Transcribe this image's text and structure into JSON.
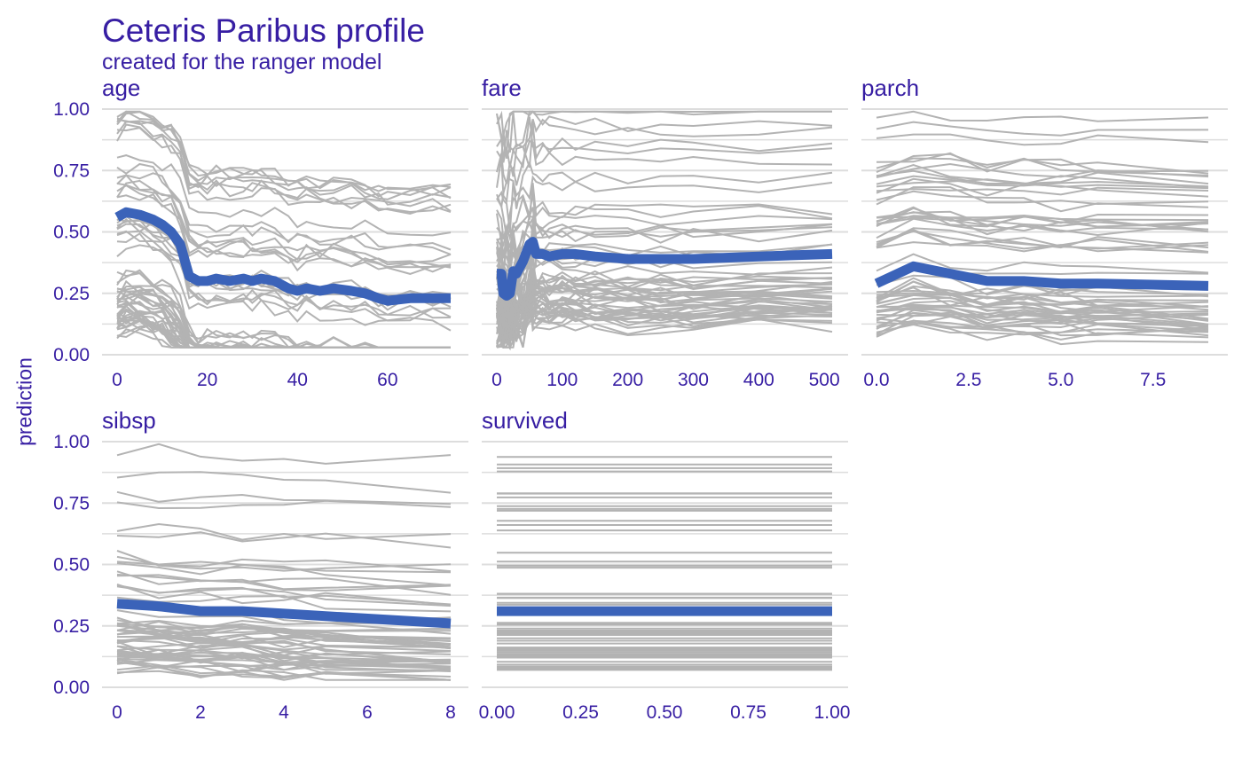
{
  "title": "Ceteris Paribus profile",
  "subtitle": "created for the ranger model",
  "ylabel": "prediction",
  "colors": {
    "text": "#371ea3",
    "grid": "#dddddd",
    "profiles": "#b3b3b3",
    "highlight": "#3b63b9"
  },
  "chart_data": [
    {
      "type": "line",
      "title": "age",
      "ylabel": "prediction",
      "ylim": [
        0,
        1
      ],
      "xlim": [
        0,
        74
      ],
      "xticks": [
        0,
        20,
        40,
        60
      ],
      "xtick_labels": [
        "0",
        "20",
        "40",
        "60"
      ],
      "yticks": [
        0,
        0.25,
        0.5,
        0.75,
        1
      ],
      "ytick_labels": [
        "0.00",
        "0.25",
        "0.50",
        "0.75",
        "1.00"
      ],
      "grid": true,
      "highlight_series": {
        "x": [
          0,
          2,
          5,
          8,
          10,
          12,
          14,
          16,
          18,
          20,
          22,
          25,
          28,
          30,
          32,
          35,
          38,
          40,
          42,
          45,
          48,
          52,
          55,
          58,
          60,
          65,
          70,
          74
        ],
        "y": [
          0.56,
          0.58,
          0.57,
          0.55,
          0.53,
          0.5,
          0.45,
          0.32,
          0.3,
          0.3,
          0.31,
          0.3,
          0.31,
          0.3,
          0.31,
          0.3,
          0.27,
          0.26,
          0.27,
          0.26,
          0.27,
          0.26,
          0.25,
          0.23,
          0.22,
          0.23,
          0.23,
          0.23
        ]
      },
      "profile_count": 60
    },
    {
      "type": "line",
      "title": "fare",
      "ylim": [
        0,
        1
      ],
      "xlim": [
        0,
        512
      ],
      "xticks": [
        0,
        100,
        200,
        300,
        400,
        500
      ],
      "xtick_labels": [
        "0",
        "100",
        "200",
        "300",
        "400",
        "500"
      ],
      "yticks": [
        0,
        0.25,
        0.5,
        0.75,
        1
      ],
      "grid": true,
      "highlight_series": {
        "x": [
          0,
          7,
          10,
          15,
          20,
          25,
          30,
          40,
          50,
          55,
          60,
          70,
          80,
          100,
          120,
          150,
          200,
          250,
          300,
          400,
          512
        ],
        "y": [
          0.33,
          0.33,
          0.25,
          0.24,
          0.25,
          0.34,
          0.33,
          0.38,
          0.45,
          0.46,
          0.41,
          0.41,
          0.4,
          0.41,
          0.41,
          0.4,
          0.39,
          0.39,
          0.39,
          0.4,
          0.41
        ]
      },
      "profile_count": 60
    },
    {
      "type": "line",
      "title": "parch",
      "ylim": [
        0,
        1
      ],
      "xlim": [
        0,
        9
      ],
      "xticks": [
        0,
        2.5,
        5,
        7.5
      ],
      "xtick_labels": [
        "0.0",
        "2.5",
        "5.0",
        "7.5"
      ],
      "yticks": [
        0,
        0.25,
        0.5,
        0.75,
        1
      ],
      "grid": true,
      "highlight_series": {
        "x": [
          0,
          1,
          2,
          3,
          4,
          5,
          6,
          9
        ],
        "y": [
          0.29,
          0.36,
          0.33,
          0.3,
          0.3,
          0.29,
          0.29,
          0.28
        ]
      },
      "profile_count": 60
    },
    {
      "type": "line",
      "title": "sibsp",
      "ylim": [
        0,
        1
      ],
      "xlim": [
        0,
        8
      ],
      "xticks": [
        0,
        2,
        4,
        6,
        8
      ],
      "xtick_labels": [
        "0",
        "2",
        "4",
        "6",
        "8"
      ],
      "yticks": [
        0,
        0.25,
        0.5,
        0.75,
        1
      ],
      "ytick_labels": [
        "0.00",
        "0.25",
        "0.50",
        "0.75",
        "1.00"
      ],
      "grid": true,
      "highlight_series": {
        "x": [
          0,
          1,
          2,
          3,
          4,
          5,
          8
        ],
        "y": [
          0.34,
          0.33,
          0.31,
          0.31,
          0.3,
          0.29,
          0.26
        ]
      },
      "profile_count": 60
    },
    {
      "type": "line",
      "title": "survived",
      "ylim": [
        0,
        1
      ],
      "xlim": [
        0,
        1
      ],
      "xticks": [
        0,
        0.25,
        0.5,
        0.75,
        1
      ],
      "xtick_labels": [
        "0.00",
        "0.25",
        "0.50",
        "0.75",
        "1.00"
      ],
      "yticks": [
        0,
        0.25,
        0.5,
        0.75,
        1
      ],
      "grid": true,
      "highlight_series": {
        "x": [
          0,
          1
        ],
        "y": [
          0.31,
          0.31
        ]
      },
      "profile_count": 60
    }
  ]
}
